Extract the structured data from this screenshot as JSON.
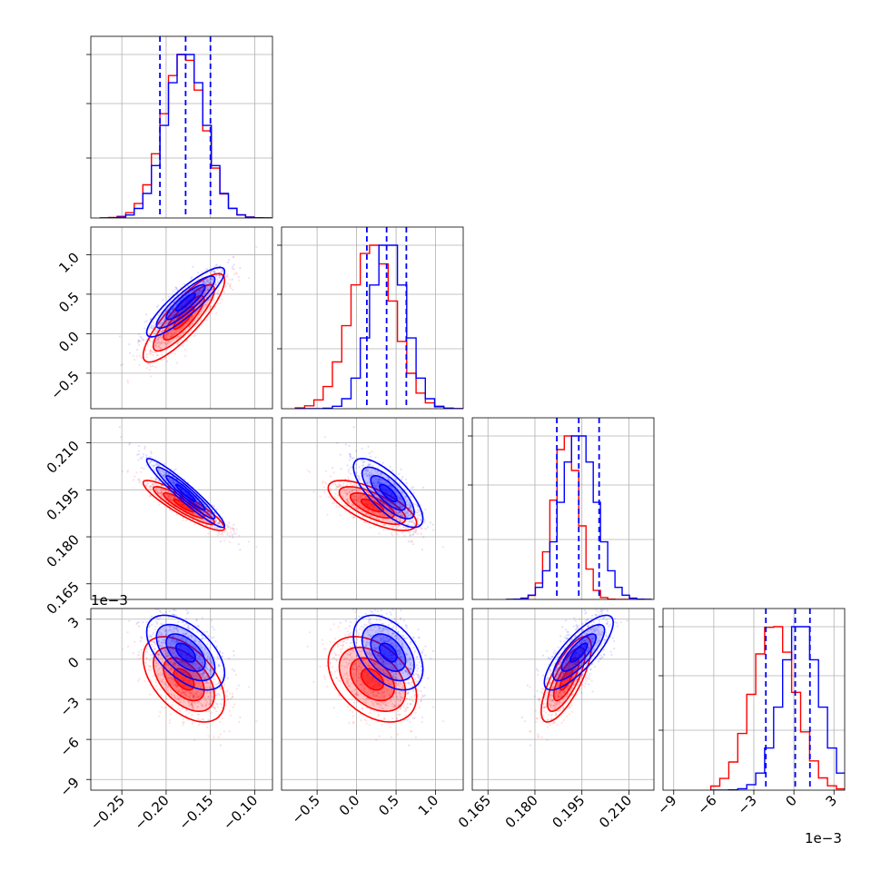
{
  "chart_data": {
    "type": "corner",
    "colors": {
      "series_a": "#0000ff",
      "series_b": "#ff0000",
      "grid": "#b0b0b0"
    },
    "grid": true,
    "parameters": [
      {
        "range": [
          -0.285,
          -0.08
        ],
        "ticks": [
          -0.25,
          -0.2,
          -0.15,
          -0.1
        ],
        "tick_labels": [
          "−0.25",
          "−0.20",
          "−0.15",
          "−0.10"
        ]
      },
      {
        "range": [
          -0.95,
          1.35
        ],
        "ticks": [
          -0.5,
          0.0,
          0.5,
          1.0
        ],
        "tick_labels": [
          "−0.5",
          "0.0",
          "0.5",
          "1.0"
        ]
      },
      {
        "range": [
          0.16,
          0.218
        ],
        "ticks": [
          0.165,
          0.18,
          0.195,
          0.21
        ],
        "tick_labels": [
          "0.165",
          "0.180",
          "0.195",
          "0.210"
        ]
      },
      {
        "range": [
          -0.0098,
          0.0038
        ],
        "ticks": [
          -0.009,
          -0.006,
          -0.003,
          0.0,
          0.003
        ],
        "tick_labels": [
          "−9",
          "−6",
          "−3",
          "0",
          "3"
        ],
        "offset_label": "1e−3"
      }
    ],
    "series": [
      {
        "color": "#0000ff",
        "means": [
          -0.178,
          0.4,
          0.194,
          0.0005
        ],
        "sds": [
          0.022,
          0.22,
          0.0055,
          0.0014
        ],
        "corr": [
          [
            1,
            0.88,
            -0.95,
            -0.55
          ],
          [
            0.88,
            1,
            -0.75,
            -0.45
          ],
          [
            -0.95,
            -0.75,
            1,
            0.8
          ],
          [
            -0.55,
            -0.45,
            0.8,
            1
          ]
        ]
      },
      {
        "color": "#ff0000",
        "means": [
          -0.18,
          0.2,
          0.19,
          -0.0015
        ],
        "sds": [
          0.023,
          0.28,
          0.004,
          0.0016
        ],
        "corr": [
          [
            1,
            0.85,
            -0.9,
            -0.5
          ],
          [
            0.85,
            1,
            -0.7,
            -0.4
          ],
          [
            -0.9,
            -0.7,
            1,
            0.75
          ],
          [
            -0.5,
            -0.4,
            0.75,
            1
          ]
        ]
      }
    ],
    "quantile_lines": [
      [
        -0.207,
        -0.178,
        -0.15
      ],
      [
        0.13,
        0.38,
        0.63
      ],
      [
        0.187,
        0.194,
        0.2005
      ],
      [
        -0.0021,
        0.0001,
        0.0012
      ]
    ]
  }
}
